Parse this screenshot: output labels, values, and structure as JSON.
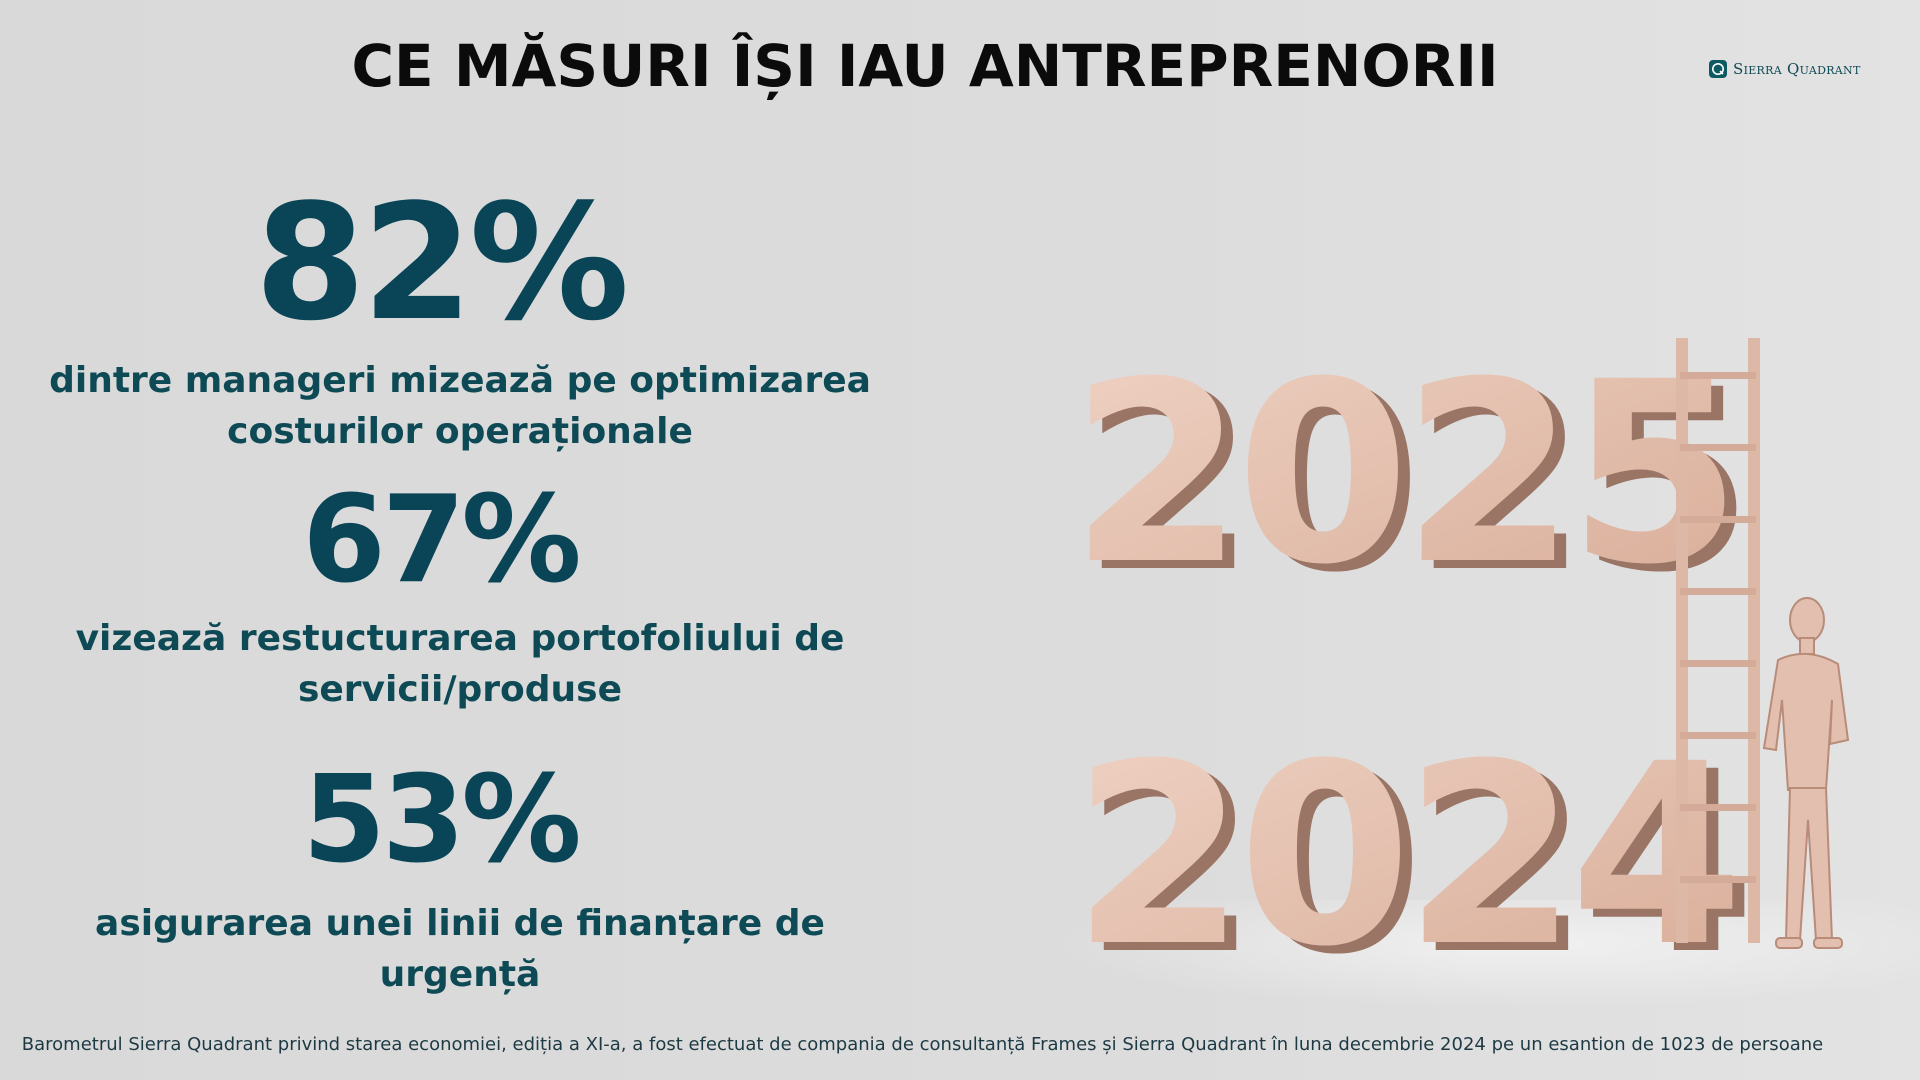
{
  "header": {
    "title": "CE MĂSURI ÎȘI IAU ANTREPRENORII",
    "logo_text": "Sierra Quadrant"
  },
  "stats": [
    {
      "value": "82%",
      "description_line1": "dintre manageri mizează pe optimizarea",
      "description_line2": "costurilor operaționale"
    },
    {
      "value": "67%",
      "description_line1": "vizează restucturarea portofoliului de",
      "description_line2": "servicii/produse"
    },
    {
      "value": "53%",
      "description_line1": "asigurarea unei linii de finanțare de urgență"
    }
  ],
  "illustration": {
    "year_top": "2025",
    "year_bottom": "2024",
    "icon": "ladder-businessman-figure"
  },
  "footer": {
    "note": "Barometrul Sierra Quadrant privind starea economiei, ediția a XI-a, a fost efectuat de compania de consultanță Frames și Sierra Quadrant în luna decembrie 2024 pe un esantion de 1023 de persoane"
  },
  "colors": {
    "stat_value": "#0a4557",
    "stat_text": "#0e4a55",
    "wood": "#e6c3b2",
    "background": "#dadada"
  }
}
